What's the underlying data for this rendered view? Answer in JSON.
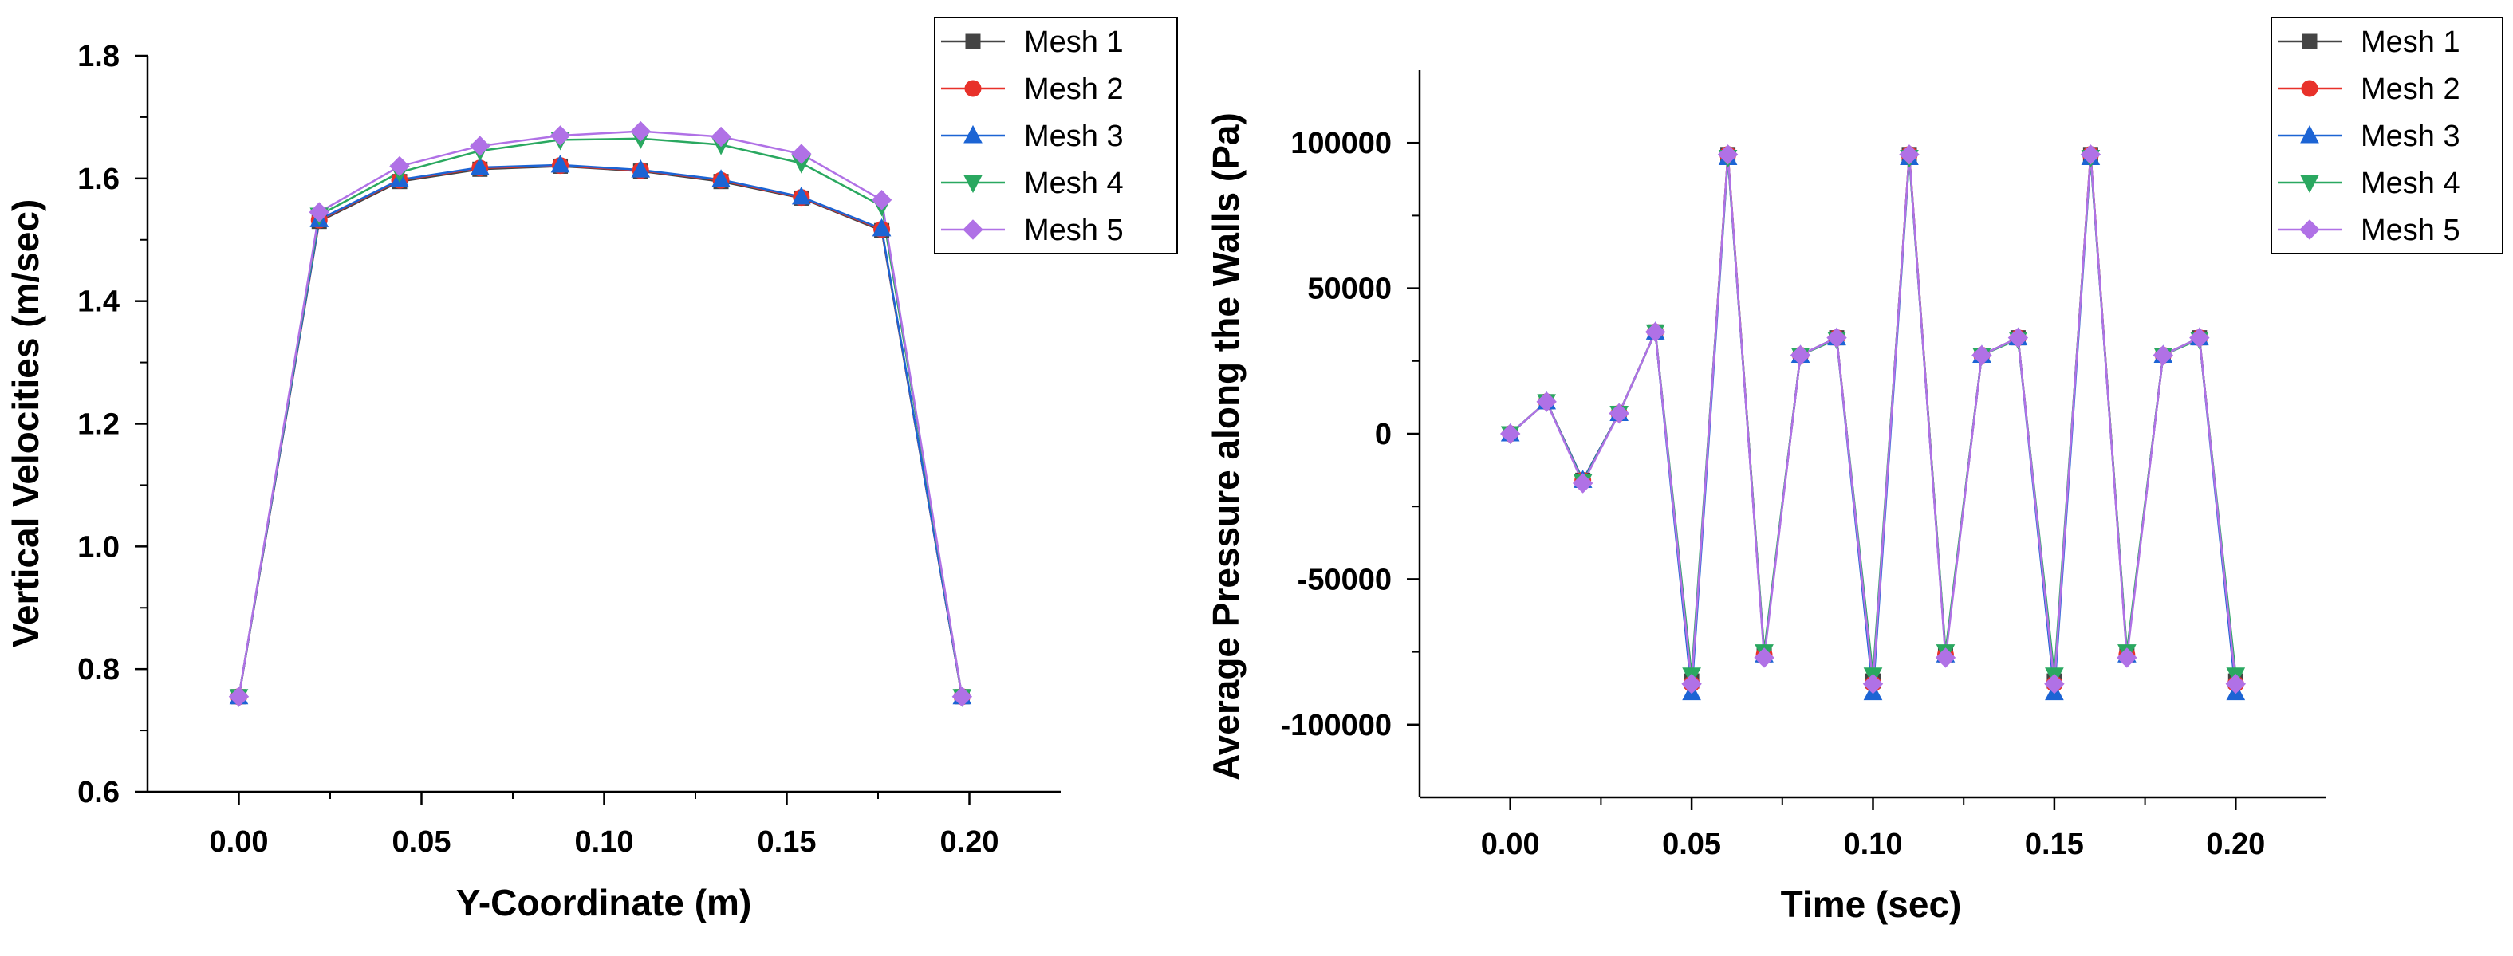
{
  "figure": {
    "series_names": [
      "Mesh 1",
      "Mesh 2",
      "Mesh 3",
      "Mesh 4",
      "Mesh 5"
    ],
    "series_colors": [
      "#444444",
      "#e8312a",
      "#1c64d4",
      "#2aa860",
      "#b071e6"
    ],
    "series_markers": [
      "square",
      "circle",
      "triangle-up",
      "triangle-down",
      "diamond"
    ]
  },
  "chart_data": [
    {
      "type": "line",
      "title": "",
      "xlabel": "Y-Coordinate (m)",
      "ylabel": "Vertical Velocities (m/sec)",
      "xlim": [
        -0.025,
        0.225
      ],
      "ylim": [
        0.6,
        1.8
      ],
      "xticks": [
        0.0,
        0.05,
        0.1,
        0.15,
        0.2
      ],
      "xtick_labels": [
        "0.00",
        "0.05",
        "0.10",
        "0.15",
        "0.20"
      ],
      "yticks": [
        0.6,
        0.8,
        1.0,
        1.2,
        1.4,
        1.6,
        1.8
      ],
      "ytick_labels": [
        "0.6",
        "0.8",
        "1.0",
        "1.2",
        "1.4",
        "1.6",
        "1.8"
      ],
      "legend_position": "top-right",
      "grid": false,
      "x": [
        0.0,
        0.022,
        0.044,
        0.066,
        0.088,
        0.11,
        0.132,
        0.154,
        0.176,
        0.198
      ],
      "series": [
        {
          "name": "Mesh 1",
          "values": [
            0.755,
            1.53,
            1.595,
            1.615,
            1.62,
            1.612,
            1.595,
            1.568,
            1.515,
            0.755
          ]
        },
        {
          "name": "Mesh 2",
          "values": [
            0.755,
            1.532,
            1.597,
            1.617,
            1.621,
            1.613,
            1.597,
            1.569,
            1.517,
            0.755
          ]
        },
        {
          "name": "Mesh 3",
          "values": [
            0.755,
            1.533,
            1.598,
            1.618,
            1.622,
            1.614,
            1.598,
            1.57,
            1.518,
            0.755
          ]
        },
        {
          "name": "Mesh 4",
          "values": [
            0.755,
            1.54,
            1.61,
            1.645,
            1.663,
            1.665,
            1.655,
            1.625,
            1.555,
            0.755
          ]
        },
        {
          "name": "Mesh 5",
          "values": [
            0.755,
            1.545,
            1.62,
            1.653,
            1.67,
            1.677,
            1.668,
            1.64,
            1.565,
            0.755
          ]
        }
      ]
    },
    {
      "type": "line",
      "title": "",
      "xlabel": "Time (sec)",
      "ylabel": "Average Pressure along the Walls (Pa)",
      "xlim": [
        -0.025,
        0.225
      ],
      "ylim": [
        -125000,
        125000
      ],
      "xticks": [
        0.0,
        0.05,
        0.1,
        0.15,
        0.2
      ],
      "xtick_labels": [
        "0.00",
        "0.05",
        "0.10",
        "0.15",
        "0.20"
      ],
      "yticks": [
        -100000,
        -50000,
        0,
        50000,
        100000
      ],
      "ytick_labels": [
        "-100000",
        "-50000",
        "0",
        "50000",
        "100000"
      ],
      "legend_position": "top-right",
      "grid": false,
      "x": [
        0.0,
        0.01,
        0.02,
        0.03,
        0.04,
        0.05,
        0.06,
        0.07,
        0.08,
        0.09,
        0.1,
        0.11,
        0.12,
        0.13,
        0.14,
        0.15,
        0.16,
        0.17,
        0.18,
        0.19,
        0.2
      ],
      "series": [
        {
          "name": "Mesh 1",
          "values": [
            0,
            11000,
            -16000,
            7000,
            35000,
            -85000,
            96000,
            -76000,
            27000,
            33000,
            -85000,
            96000,
            -76000,
            27000,
            33000,
            -85000,
            96000,
            -76000,
            27000,
            33000,
            -85000
          ]
        },
        {
          "name": "Mesh 2",
          "values": [
            0,
            11000,
            -16000,
            7000,
            35000,
            -86000,
            96000,
            -76000,
            27000,
            33000,
            -86000,
            96000,
            -76000,
            27000,
            33000,
            -86000,
            96000,
            -76000,
            27000,
            33000,
            -86000
          ]
        },
        {
          "name": "Mesh 3",
          "values": [
            0,
            11000,
            -16000,
            7000,
            35000,
            -89000,
            95000,
            -76000,
            27000,
            33000,
            -89000,
            95000,
            -76000,
            27000,
            33000,
            -89000,
            95000,
            -76000,
            27000,
            33000,
            -89000
          ]
        },
        {
          "name": "Mesh 4",
          "values": [
            0,
            11000,
            -16500,
            7000,
            35000,
            -83000,
            95000,
            -75000,
            27000,
            32500,
            -83000,
            95000,
            -75000,
            27000,
            32500,
            -83000,
            95000,
            -75000,
            27000,
            32500,
            -83000
          ]
        },
        {
          "name": "Mesh 5",
          "values": [
            0,
            11000,
            -17000,
            7000,
            35000,
            -86000,
            96000,
            -77000,
            27000,
            33000,
            -86000,
            96000,
            -77000,
            27000,
            33000,
            -86000,
            96000,
            -77000,
            27000,
            33000,
            -86000
          ]
        }
      ]
    }
  ]
}
